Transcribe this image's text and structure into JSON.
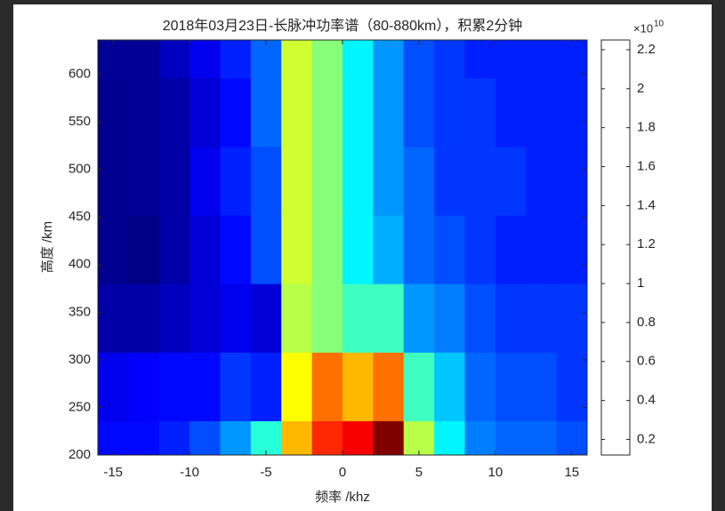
{
  "chart_data": {
    "type": "heatmap",
    "title": "2018年03月23日-长脉冲功率谱（80-880km），积累2分钟",
    "x_label": "频率 /khz",
    "y_label": "高度 /km",
    "x_edges": [
      -16,
      -14,
      -12,
      -10,
      -8,
      -6,
      -4,
      -2,
      0,
      2,
      4,
      6,
      8,
      10,
      12,
      14,
      16
    ],
    "y_edges": [
      200,
      236,
      308,
      380,
      452,
      524,
      596,
      636
    ],
    "z": [
      [
        0.4,
        0.4,
        0.45,
        0.55,
        0.7,
        1.0,
        1.6,
        1.9,
        2.0,
        2.25,
        1.3,
        0.9,
        0.65,
        0.6,
        0.6,
        0.55
      ],
      [
        0.35,
        0.38,
        0.4,
        0.4,
        0.5,
        0.45,
        1.45,
        1.75,
        1.6,
        1.75,
        1.05,
        0.8,
        0.6,
        0.55,
        0.55,
        0.5
      ],
      [
        0.2,
        0.2,
        0.25,
        0.3,
        0.35,
        0.3,
        1.3,
        1.2,
        1.05,
        1.05,
        0.7,
        0.65,
        0.55,
        0.5,
        0.5,
        0.5
      ],
      [
        0.15,
        0.13,
        0.2,
        0.3,
        0.4,
        0.55,
        1.35,
        1.2,
        0.9,
        0.75,
        0.6,
        0.55,
        0.5,
        0.45,
        0.45,
        0.45
      ],
      [
        0.15,
        0.17,
        0.2,
        0.35,
        0.45,
        0.55,
        1.35,
        1.2,
        0.9,
        0.7,
        0.6,
        0.5,
        0.5,
        0.5,
        0.45,
        0.45
      ],
      [
        0.15,
        0.17,
        0.2,
        0.3,
        0.4,
        0.6,
        1.35,
        1.2,
        0.9,
        0.7,
        0.55,
        0.5,
        0.5,
        0.45,
        0.45,
        0.45
      ],
      [
        0.17,
        0.17,
        0.25,
        0.35,
        0.45,
        0.6,
        1.35,
        1.2,
        0.9,
        0.7,
        0.55,
        0.5,
        0.45,
        0.45,
        0.45,
        0.45
      ]
    ],
    "xlim": [
      -16,
      16
    ],
    "xticks": [
      -15,
      -10,
      -5,
      0,
      5,
      10,
      15
    ],
    "ylim": [
      200,
      636
    ],
    "yticks": [
      200,
      250,
      300,
      350,
      400,
      450,
      500,
      550,
      600
    ],
    "colormap": "jet",
    "clim": [
      0.12,
      2.25
    ],
    "cticks": [
      0.2,
      0.4,
      0.6,
      0.8,
      1,
      1.2,
      1.4,
      1.6,
      1.8,
      2,
      2.2
    ],
    "c_multiplier": "×10",
    "c_exponent": "10"
  }
}
